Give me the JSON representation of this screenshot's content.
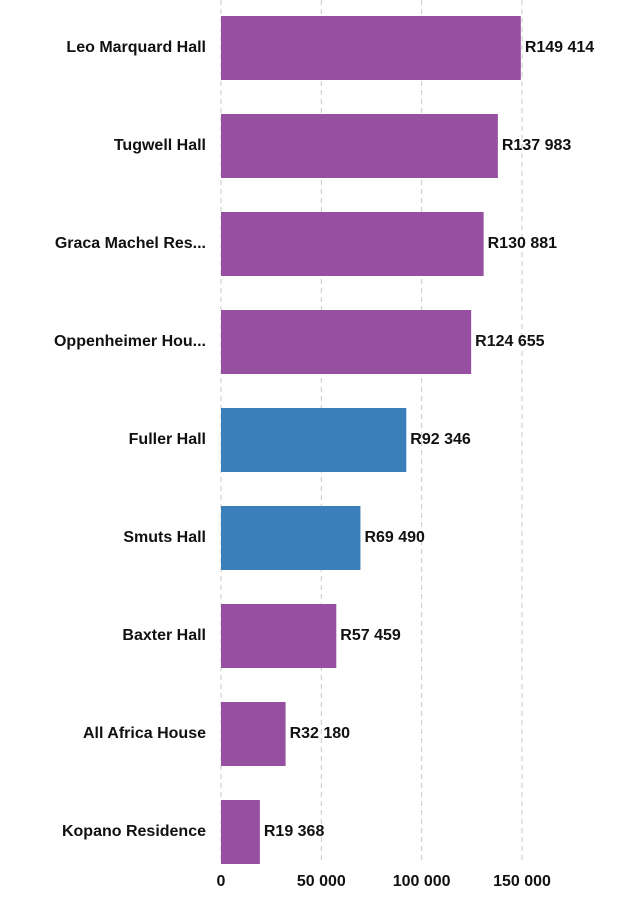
{
  "chart_data": {
    "type": "bar",
    "orientation": "horizontal",
    "categories": [
      "Leo Marquard Hall",
      "Tugwell Hall",
      "Graca Machel Res...",
      "Oppenheimer Hou...",
      "Fuller Hall",
      "Smuts Hall",
      "Baxter Hall",
      "All Africa House",
      "Kopano Residence"
    ],
    "values": [
      149414,
      137983,
      130881,
      124655,
      92346,
      69490,
      57459,
      32180,
      19368
    ],
    "value_labels": [
      "R149 414",
      "R137 983",
      "R130 881",
      "R124 655",
      "R92 346",
      "R69 490",
      "R57 459",
      "R32 180",
      "R19 368"
    ],
    "colors": [
      "#974fa1",
      "#974fa1",
      "#974fa1",
      "#974fa1",
      "#3b7fba",
      "#3b7fba",
      "#974fa1",
      "#974fa1",
      "#974fa1"
    ],
    "xlim": [
      0,
      150000
    ],
    "xticks": [
      0,
      {
        "value": 50000,
        "label": "50 000"
      },
      {
        "value": 100000,
        "label": "100 000"
      },
      {
        "value": 150000,
        "label": "150 000"
      }
    ],
    "grid": true
  }
}
